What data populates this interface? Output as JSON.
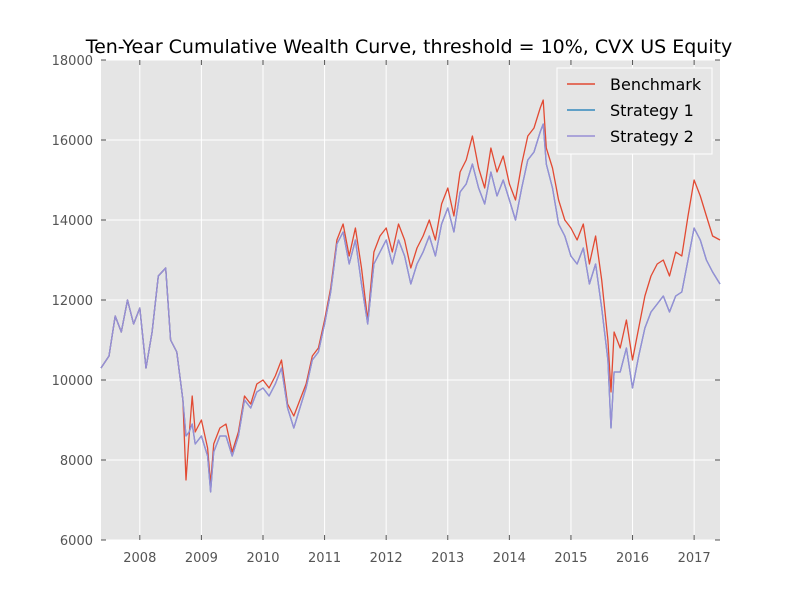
{
  "chart_data": {
    "type": "line",
    "title": "Ten-Year Cumulative Wealth Curve, threshold = 10%, CVX US Equity",
    "xlabel": "",
    "ylabel": "",
    "xlim": [
      2007.37,
      2017.42
    ],
    "ylim": [
      6000,
      18000
    ],
    "x_ticks": [
      2008,
      2009,
      2010,
      2011,
      2012,
      2013,
      2014,
      2015,
      2016,
      2017
    ],
    "x_tick_labels": [
      "2008",
      "2009",
      "2010",
      "2011",
      "2012",
      "2013",
      "2014",
      "2015",
      "2016",
      "2017"
    ],
    "y_ticks": [
      6000,
      8000,
      10000,
      12000,
      14000,
      16000,
      18000
    ],
    "y_tick_labels": [
      "6000",
      "8000",
      "10000",
      "12000",
      "14000",
      "16000",
      "18000"
    ],
    "grid": true,
    "legend_position": "top-right",
    "x": [
      2007.37,
      2007.5,
      2007.6,
      2007.7,
      2007.8,
      2007.9,
      2008.0,
      2008.1,
      2008.2,
      2008.3,
      2008.42,
      2008.5,
      2008.6,
      2008.7,
      2008.75,
      2008.8,
      2008.85,
      2008.9,
      2009.0,
      2009.1,
      2009.15,
      2009.2,
      2009.3,
      2009.4,
      2009.5,
      2009.6,
      2009.7,
      2009.8,
      2009.9,
      2010.0,
      2010.1,
      2010.2,
      2010.3,
      2010.4,
      2010.5,
      2010.6,
      2010.7,
      2010.8,
      2010.9,
      2011.0,
      2011.1,
      2011.2,
      2011.3,
      2011.4,
      2011.5,
      2011.6,
      2011.7,
      2011.8,
      2011.9,
      2012.0,
      2012.1,
      2012.2,
      2012.3,
      2012.4,
      2012.5,
      2012.6,
      2012.7,
      2012.8,
      2012.9,
      2013.0,
      2013.1,
      2013.2,
      2013.3,
      2013.4,
      2013.5,
      2013.6,
      2013.7,
      2013.8,
      2013.9,
      2014.0,
      2014.1,
      2014.2,
      2014.3,
      2014.4,
      2014.5,
      2014.55,
      2014.6,
      2014.7,
      2014.8,
      2014.9,
      2015.0,
      2015.1,
      2015.2,
      2015.3,
      2015.4,
      2015.5,
      2015.6,
      2015.65,
      2015.7,
      2015.8,
      2015.9,
      2016.0,
      2016.1,
      2016.2,
      2016.3,
      2016.4,
      2016.5,
      2016.6,
      2016.7,
      2016.8,
      2016.9,
      2017.0,
      2017.1,
      2017.2,
      2017.3,
      2017.42
    ],
    "series": [
      {
        "name": "Benchmark",
        "color": "#e24a33",
        "values": [
          10300,
          10600,
          11600,
          11200,
          12000,
          11400,
          11800,
          10300,
          11200,
          12600,
          12800,
          11000,
          10700,
          9500,
          7500,
          8600,
          9600,
          8700,
          9000,
          8300,
          7400,
          8400,
          8800,
          8900,
          8200,
          8700,
          9600,
          9400,
          9900,
          10000,
          9800,
          10100,
          10500,
          9400,
          9100,
          9500,
          9900,
          10600,
          10800,
          11500,
          12300,
          13500,
          13900,
          13100,
          13800,
          12800,
          11500,
          13200,
          13600,
          13800,
          13200,
          13900,
          13500,
          12800,
          13300,
          13600,
          14000,
          13500,
          14400,
          14800,
          14100,
          15200,
          15500,
          16100,
          15300,
          14800,
          15800,
          15200,
          15600,
          14900,
          14500,
          15400,
          16100,
          16300,
          16800,
          17000,
          15800,
          15300,
          14500,
          14000,
          13800,
          13500,
          13900,
          12900,
          13600,
          12500,
          11000,
          9700,
          11200,
          10800,
          11500,
          10500,
          11300,
          12100,
          12600,
          12900,
          13000,
          12600,
          13200,
          13100,
          14100,
          15000,
          14600,
          14100,
          13600,
          13500
        ]
      },
      {
        "name": "Strategy 1",
        "color": "#348abd",
        "values": [
          10300,
          10600,
          11600,
          11200,
          12000,
          11400,
          11800,
          10300,
          11200,
          12600,
          12800,
          11000,
          10700,
          9500,
          8600,
          8700,
          8900,
          8400,
          8600,
          8100,
          7200,
          8200,
          8600,
          8600,
          8100,
          8600,
          9500,
          9300,
          9700,
          9800,
          9600,
          9900,
          10300,
          9300,
          8800,
          9300,
          9800,
          10500,
          10700,
          11400,
          12200,
          13400,
          13700,
          12900,
          13500,
          12400,
          11400,
          12900,
          13200,
          13500,
          12900,
          13500,
          13100,
          12400,
          12900,
          13200,
          13600,
          13100,
          13900,
          14300,
          13700,
          14700,
          14900,
          15400,
          14800,
          14400,
          15200,
          14600,
          15000,
          14500,
          14000,
          14800,
          15500,
          15700,
          16200,
          16400,
          15400,
          14800,
          13900,
          13600,
          13100,
          12900,
          13300,
          12400,
          12900,
          11800,
          10500,
          8800,
          10200,
          10200,
          10800,
          9800,
          10600,
          11300,
          11700,
          11900,
          12100,
          11700,
          12100,
          12200,
          13000,
          13800,
          13500,
          13000,
          12700,
          12400
        ]
      },
      {
        "name": "Strategy 2",
        "color": "#988ed5",
        "values": [
          10300,
          10600,
          11600,
          11200,
          12000,
          11400,
          11800,
          10300,
          11200,
          12600,
          12800,
          11000,
          10700,
          9500,
          8600,
          8700,
          8900,
          8400,
          8600,
          8100,
          7200,
          8200,
          8600,
          8600,
          8100,
          8600,
          9500,
          9300,
          9700,
          9800,
          9600,
          9900,
          10300,
          9300,
          8800,
          9300,
          9800,
          10500,
          10700,
          11400,
          12200,
          13400,
          13700,
          12900,
          13500,
          12400,
          11400,
          12900,
          13200,
          13500,
          12900,
          13500,
          13100,
          12400,
          12900,
          13200,
          13600,
          13100,
          13900,
          14300,
          13700,
          14700,
          14900,
          15400,
          14800,
          14400,
          15200,
          14600,
          15000,
          14500,
          14000,
          14800,
          15500,
          15700,
          16200,
          16400,
          15400,
          14800,
          13900,
          13600,
          13100,
          12900,
          13300,
          12400,
          12900,
          11800,
          10500,
          8800,
          10200,
          10200,
          10800,
          9800,
          10600,
          11300,
          11700,
          11900,
          12100,
          11700,
          12100,
          12200,
          13000,
          13800,
          13500,
          13000,
          12700,
          12400
        ]
      }
    ]
  }
}
